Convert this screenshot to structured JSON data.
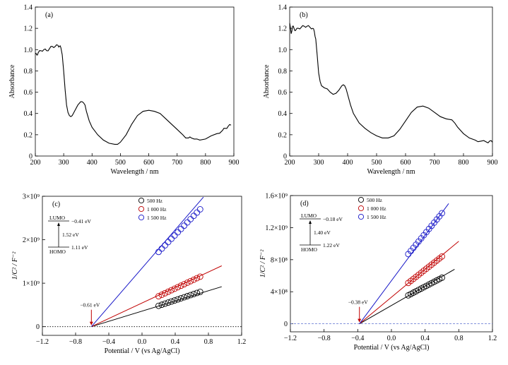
{
  "chart_data": [
    {
      "panel": "(a)",
      "type": "line",
      "xlabel": "Wavelength / nm",
      "ylabel": "Absorbance",
      "xlim": [
        200,
        900
      ],
      "ylim": [
        0,
        1.4
      ],
      "xticks": [
        200,
        300,
        400,
        500,
        600,
        700,
        800,
        900
      ],
      "yticks": [
        0,
        0.2,
        0.4,
        0.6,
        0.8,
        1.0,
        1.2,
        1.4
      ],
      "ytick_labels": [
        "0",
        "0.2",
        "0.4",
        "0.6",
        "0.8",
        "1.0",
        "1.2",
        "1.4"
      ],
      "series": [
        {
          "color": "#000000",
          "x": [
            200,
            205,
            210,
            220,
            230,
            240,
            250,
            260,
            270,
            280,
            285,
            290,
            295,
            300,
            305,
            310,
            315,
            320,
            325,
            330,
            340,
            350,
            360,
            365,
            370,
            375,
            380,
            390,
            400,
            420,
            440,
            460,
            480,
            490,
            500,
            520,
            540,
            560,
            580,
            600,
            620,
            640,
            660,
            680,
            700,
            720,
            730,
            740,
            745,
            750,
            760,
            770,
            780,
            800,
            820,
            840,
            860,
            870,
            880,
            890
          ],
          "y": [
            0.96,
            0.95,
            0.97,
            0.99,
            1.0,
            0.99,
            1.01,
            1.03,
            1.03,
            1.04,
            1.03,
            1.02,
            0.95,
            0.8,
            0.62,
            0.48,
            0.41,
            0.38,
            0.37,
            0.38,
            0.43,
            0.48,
            0.51,
            0.51,
            0.5,
            0.48,
            0.42,
            0.33,
            0.27,
            0.2,
            0.15,
            0.12,
            0.11,
            0.11,
            0.13,
            0.2,
            0.3,
            0.38,
            0.42,
            0.43,
            0.42,
            0.4,
            0.35,
            0.3,
            0.25,
            0.2,
            0.17,
            0.17,
            0.18,
            0.17,
            0.16,
            0.16,
            0.15,
            0.16,
            0.19,
            0.21,
            0.24,
            0.26,
            0.28,
            0.29
          ]
        }
      ]
    },
    {
      "panel": "(b)",
      "type": "line",
      "xlabel": "Wavelength / nm",
      "ylabel": "Absorbance",
      "xlim": [
        200,
        900
      ],
      "ylim": [
        0,
        1.4
      ],
      "xticks": [
        200,
        300,
        400,
        500,
        600,
        700,
        800,
        900
      ],
      "yticks": [
        0,
        0.2,
        0.4,
        0.6,
        0.8,
        1.0,
        1.2,
        1.4
      ],
      "ytick_labels": [
        "0",
        "0.2",
        "0.4",
        "0.6",
        "0.8",
        "1.0",
        "1.2",
        "1.4"
      ],
      "series": [
        {
          "color": "#000000",
          "x": [
            200,
            205,
            210,
            215,
            220,
            230,
            240,
            250,
            260,
            270,
            280,
            285,
            290,
            295,
            300,
            305,
            310,
            320,
            330,
            340,
            350,
            360,
            370,
            380,
            385,
            390,
            395,
            400,
            410,
            420,
            440,
            460,
            480,
            500,
            520,
            540,
            560,
            580,
            600,
            620,
            640,
            660,
            680,
            700,
            720,
            740,
            760,
            770,
            780,
            800,
            820,
            840,
            860,
            880,
            890,
            900
          ],
          "y": [
            1.25,
            1.15,
            1.22,
            1.2,
            1.18,
            1.2,
            1.21,
            1.22,
            1.22,
            1.21,
            1.2,
            1.17,
            1.1,
            0.95,
            0.78,
            0.7,
            0.66,
            0.64,
            0.63,
            0.6,
            0.58,
            0.59,
            0.62,
            0.66,
            0.67,
            0.66,
            0.63,
            0.58,
            0.48,
            0.4,
            0.31,
            0.26,
            0.22,
            0.19,
            0.17,
            0.17,
            0.19,
            0.25,
            0.33,
            0.41,
            0.46,
            0.47,
            0.45,
            0.41,
            0.37,
            0.35,
            0.34,
            0.31,
            0.27,
            0.21,
            0.17,
            0.15,
            0.14,
            0.13,
            0.14,
            0.13
          ]
        }
      ]
    },
    {
      "panel": "(c)",
      "type": "scatter",
      "xlabel": "Potential / V (vs Ag/AgCl)",
      "ylabel": "1/C² / F⁻²",
      "xlim": [
        -1.2,
        1.2
      ],
      "ylim": [
        -200000000,
        3000000000
      ],
      "xticks": [
        -1.2,
        -0.8,
        -0.4,
        0.0,
        0.4,
        0.8,
        1.2
      ],
      "xtick_labels": [
        "−1.2",
        "−0.8",
        "−0.4",
        "0.0",
        "0.4",
        "0.8",
        "1.2"
      ],
      "yticks": [
        0,
        1000000000,
        2000000000,
        3000000000
      ],
      "ytick_labels": [
        "0",
        "1×10⁹",
        "2×10⁹",
        "3×10⁹"
      ],
      "legend_position": "top-right",
      "series": [
        {
          "name": "500 Hz",
          "color": "#000000",
          "x_range": [
            0.2,
            0.7
          ],
          "y_range": [
            480000000,
            800000000
          ],
          "fit": [
            [
              -0.61,
              0
            ],
            [
              0.96,
              920000000
            ]
          ]
        },
        {
          "name": "1 000 Hz",
          "color": "#c00000",
          "x_range": [
            0.2,
            0.7
          ],
          "y_range": [
            700000000,
            1150000000
          ],
          "fit": [
            [
              -0.61,
              0
            ],
            [
              0.96,
              1400000000
            ]
          ]
        },
        {
          "name": "1 500 Hz",
          "color": "#1818c8",
          "x_range": [
            0.2,
            0.7
          ],
          "y_range": [
            1720000000,
            2700000000
          ],
          "fit": [
            [
              -0.61,
              0
            ],
            [
              0.74,
              2980000000
            ]
          ]
        }
      ],
      "baseline": 0,
      "annotations": {
        "flatband": "−0.61 eV",
        "lumo_label": "LUMO",
        "lumo_value": "−0.41 eV",
        "gap_value": "1.52 eV",
        "homo_label": "HOMO",
        "homo_value": "1.11 eV"
      }
    },
    {
      "panel": "(d)",
      "type": "scatter",
      "xlabel": "Potential / V (vs Ag/AgCl)",
      "ylabel": "1/C² / F⁻²",
      "xlim": [
        -1.2,
        1.2
      ],
      "ylim": [
        -100000000,
        1600000000
      ],
      "xticks": [
        -1.2,
        -0.8,
        -0.4,
        0.0,
        0.4,
        0.8,
        1.2
      ],
      "xtick_labels": [
        "−1.2",
        "−0.8",
        "−0.4",
        "0.0",
        "0.4",
        "0.8",
        "1.2"
      ],
      "yticks": [
        0,
        400000000,
        800000000,
        1200000000,
        1600000000
      ],
      "ytick_labels": [
        "0",
        "4×10⁸",
        "8×10⁸",
        "1.2×10⁹",
        "1.6×10⁹"
      ],
      "legend_position": "top-left",
      "series": [
        {
          "name": "500 Hz",
          "color": "#000000",
          "x_range": [
            0.2,
            0.6
          ],
          "y_range": [
            355000000,
            575000000
          ],
          "fit": [
            [
              -0.38,
              0
            ],
            [
              0.75,
              680000000
            ]
          ]
        },
        {
          "name": "1 000 Hz",
          "color": "#c00000",
          "x_range": [
            0.2,
            0.6
          ],
          "y_range": [
            510000000,
            840000000
          ],
          "fit": [
            [
              -0.38,
              0
            ],
            [
              0.8,
              1030000000
            ]
          ]
        },
        {
          "name": "1 500 Hz",
          "color": "#1818c8",
          "x_range": [
            0.2,
            0.6
          ],
          "y_range": [
            870000000,
            1380000000
          ],
          "fit": [
            [
              -0.38,
              0
            ],
            [
              0.68,
              1500000000
            ]
          ]
        }
      ],
      "baseline": 0,
      "annotations": {
        "flatband": "−0.38 eV",
        "lumo_label": "LUMO",
        "lumo_value": "−0.18 eV",
        "gap_value": "1.40 eV",
        "homo_label": "HOMO",
        "homo_value": "1.22 eV"
      }
    }
  ]
}
